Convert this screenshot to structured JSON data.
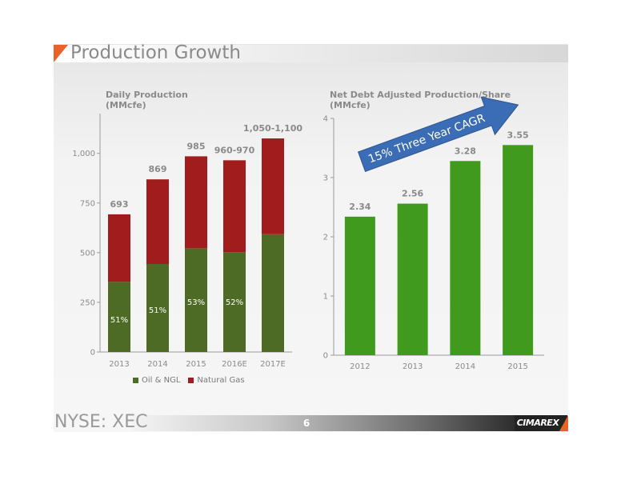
{
  "slide": {
    "title": "Production Growth",
    "footer_ticker": "NYSE: XEC",
    "page_number": "6",
    "logo_text": "CIMAREX"
  },
  "colors": {
    "oil": "#4e6b26",
    "gas": "#a11d1d",
    "green": "#3f9a1e",
    "arrow": "#3a6db5",
    "accent": "#e8622a"
  },
  "chart_data": [
    {
      "type": "bar",
      "title": "Daily Production",
      "subtitle": "(MMcfe)",
      "categories": [
        "2013",
        "2014",
        "2015",
        "2016E",
        "2017E"
      ],
      "series": [
        {
          "name": "Oil & NGL",
          "values": [
            353,
            443,
            522,
            502,
            593
          ]
        },
        {
          "name": "Natural Gas",
          "values": [
            340,
            426,
            463,
            463,
            482
          ]
        }
      ],
      "total_labels": [
        "693",
        "869",
        "985",
        "960-970",
        "1,050-1,100"
      ],
      "pct_labels": [
        "51%",
        "51%",
        "53%",
        "52%",
        ""
      ],
      "ylim": [
        0,
        1200
      ],
      "yticks": [
        0,
        250,
        500,
        750,
        1000
      ],
      "ytick_labels": [
        "0",
        "250",
        "500",
        "750",
        "1,000"
      ],
      "legend": [
        "Oil & NGL",
        "Natural Gas"
      ],
      "legend_position": "bottom"
    },
    {
      "type": "bar",
      "title": "Net Debt Adjusted Production/Share",
      "subtitle": "(MMcfe)",
      "categories": [
        "2012",
        "2013",
        "2014",
        "2015"
      ],
      "values": [
        2.34,
        2.56,
        3.28,
        3.55
      ],
      "value_labels": [
        "2.34",
        "2.56",
        "3.28",
        "3.55"
      ],
      "ylim": [
        0,
        4
      ],
      "yticks": [
        0,
        1,
        2,
        3,
        4
      ],
      "ytick_labels": [
        "0",
        "1",
        "2",
        "3",
        "4"
      ],
      "annotation": "15% Three Year CAGR"
    }
  ]
}
